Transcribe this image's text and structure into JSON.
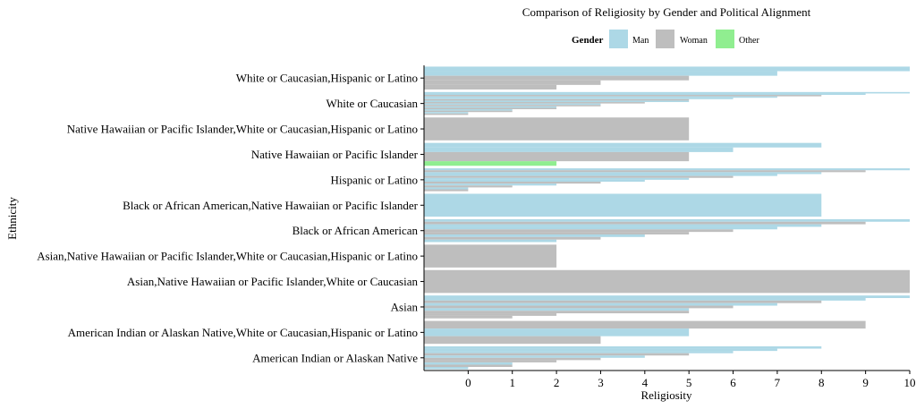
{
  "chart_data": {
    "type": "bar",
    "orientation": "horizontal",
    "title": "Comparison of Religiosity by Gender and Political Alignment",
    "xlabel": "Religiosity",
    "ylabel": "Ethnicity",
    "xlim": [
      -1,
      10
    ],
    "xticks": [
      0,
      1,
      2,
      3,
      4,
      5,
      6,
      7,
      8,
      9,
      10
    ],
    "legend": {
      "title": "Gender",
      "position": "top",
      "entries": [
        {
          "name": "Man",
          "color": "#add8e6"
        },
        {
          "name": "Woman",
          "color": "#bebebe"
        },
        {
          "name": "Other",
          "color": "#90ee90"
        }
      ]
    },
    "categories": [
      {
        "label": "White or Caucasian,Hispanic or Latino",
        "bars": [
          [
            "Man",
            10
          ],
          [
            "Man",
            7
          ],
          [
            "Woman",
            5
          ],
          [
            "Woman",
            3
          ],
          [
            "Woman",
            2
          ]
        ]
      },
      {
        "label": "White or Caucasian",
        "bars": [
          [
            "Man",
            10
          ],
          [
            "Man",
            9
          ],
          [
            "Woman",
            8
          ],
          [
            "Man",
            7
          ],
          [
            "Man",
            6
          ],
          [
            "Woman",
            5
          ],
          [
            "Man",
            5
          ],
          [
            "Woman",
            4
          ],
          [
            "Man",
            3
          ],
          [
            "Woman",
            3
          ],
          [
            "Man",
            2
          ],
          [
            "Woman",
            2
          ],
          [
            "Man",
            1
          ],
          [
            "Woman",
            1
          ],
          [
            "Man",
            0
          ],
          [
            "Woman",
            0
          ]
        ]
      },
      {
        "label": "Native Hawaiian or Pacific Islander,White or Caucasian,Hispanic or Latino",
        "bars": [
          [
            "Woman",
            5
          ]
        ]
      },
      {
        "label": "Native Hawaiian or Pacific Islander",
        "bars": [
          [
            "Man",
            8
          ],
          [
            "Man",
            6
          ],
          [
            "Woman",
            5
          ],
          [
            "Woman",
            5
          ],
          [
            "Other",
            2
          ]
        ]
      },
      {
        "label": "Hispanic or Latino",
        "bars": [
          [
            "Man",
            10
          ],
          [
            "Woman",
            9
          ],
          [
            "Man",
            8
          ],
          [
            "Man",
            7
          ],
          [
            "Woman",
            6
          ],
          [
            "Man",
            5
          ],
          [
            "Man",
            4
          ],
          [
            "Woman",
            3
          ],
          [
            "Man",
            2
          ],
          [
            "Woman",
            1
          ],
          [
            "Man",
            0
          ],
          [
            "Woman",
            0
          ]
        ]
      },
      {
        "label": "Black or African American,Native Hawaiian or Pacific Islander",
        "bars": [
          [
            "Man",
            8
          ]
        ]
      },
      {
        "label": "Black or African American",
        "bars": [
          [
            "Man",
            10
          ],
          [
            "Woman",
            9
          ],
          [
            "Man",
            8
          ],
          [
            "Man",
            7
          ],
          [
            "Woman",
            6
          ],
          [
            "Woman",
            5
          ],
          [
            "Man",
            4
          ],
          [
            "Woman",
            3
          ],
          [
            "Man",
            2
          ]
        ]
      },
      {
        "label": "Asian,Native Hawaiian or Pacific Islander,White or Caucasian,Hispanic or Latino",
        "bars": [
          [
            "Woman",
            2
          ]
        ]
      },
      {
        "label": "Asian,Native Hawaiian or Pacific Islander,White or Caucasian",
        "bars": [
          [
            "Woman",
            10
          ]
        ]
      },
      {
        "label": "Asian",
        "bars": [
          [
            "Man",
            10
          ],
          [
            "Man",
            9
          ],
          [
            "Woman",
            8
          ],
          [
            "Man",
            7
          ],
          [
            "Woman",
            6
          ],
          [
            "Man",
            5
          ],
          [
            "Woman",
            5
          ],
          [
            "Woman",
            2
          ],
          [
            "Woman",
            1
          ]
        ]
      },
      {
        "label": "American Indian or Alaskan Native,White or Caucasian,Hispanic or Latino",
        "bars": [
          [
            "Woman",
            9
          ],
          [
            "Man",
            5
          ],
          [
            "Woman",
            3
          ]
        ]
      },
      {
        "label": "American Indian or Alaskan Native",
        "bars": [
          [
            "Man",
            8
          ],
          [
            "Man",
            7
          ],
          [
            "Man",
            6
          ],
          [
            "Woman",
            5
          ],
          [
            "Man",
            4
          ],
          [
            "Woman",
            3
          ],
          [
            "Woman",
            2
          ],
          [
            "Man",
            1
          ],
          [
            "Woman",
            1
          ],
          [
            "Man",
            0
          ]
        ]
      }
    ]
  }
}
